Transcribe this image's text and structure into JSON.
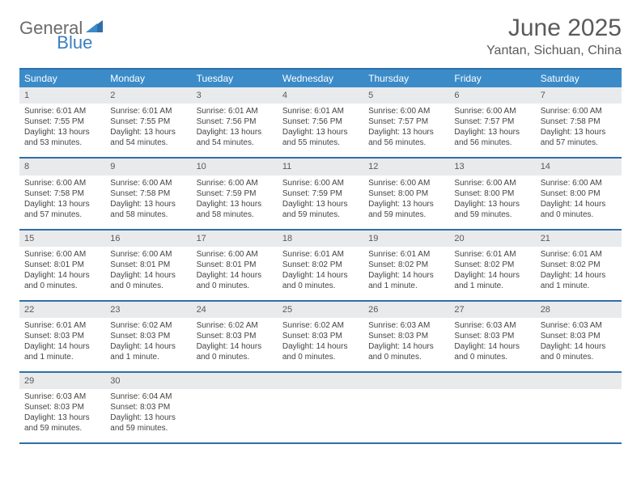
{
  "brand": {
    "word1": "General",
    "word2": "Blue"
  },
  "title": "June 2025",
  "location": "Yantan, Sichuan, China",
  "colors": {
    "header_blue": "#3b8bc9",
    "rule_blue": "#2f6fa8",
    "daynum_bg": "#e9eaec",
    "text_gray": "#5a5a5a"
  },
  "weekdays": [
    "Sunday",
    "Monday",
    "Tuesday",
    "Wednesday",
    "Thursday",
    "Friday",
    "Saturday"
  ],
  "weeks": [
    [
      {
        "n": "1",
        "sunrise": "Sunrise: 6:01 AM",
        "sunset": "Sunset: 7:55 PM",
        "day1": "Daylight: 13 hours",
        "day2": "and 53 minutes."
      },
      {
        "n": "2",
        "sunrise": "Sunrise: 6:01 AM",
        "sunset": "Sunset: 7:55 PM",
        "day1": "Daylight: 13 hours",
        "day2": "and 54 minutes."
      },
      {
        "n": "3",
        "sunrise": "Sunrise: 6:01 AM",
        "sunset": "Sunset: 7:56 PM",
        "day1": "Daylight: 13 hours",
        "day2": "and 54 minutes."
      },
      {
        "n": "4",
        "sunrise": "Sunrise: 6:01 AM",
        "sunset": "Sunset: 7:56 PM",
        "day1": "Daylight: 13 hours",
        "day2": "and 55 minutes."
      },
      {
        "n": "5",
        "sunrise": "Sunrise: 6:00 AM",
        "sunset": "Sunset: 7:57 PM",
        "day1": "Daylight: 13 hours",
        "day2": "and 56 minutes."
      },
      {
        "n": "6",
        "sunrise": "Sunrise: 6:00 AM",
        "sunset": "Sunset: 7:57 PM",
        "day1": "Daylight: 13 hours",
        "day2": "and 56 minutes."
      },
      {
        "n": "7",
        "sunrise": "Sunrise: 6:00 AM",
        "sunset": "Sunset: 7:58 PM",
        "day1": "Daylight: 13 hours",
        "day2": "and 57 minutes."
      }
    ],
    [
      {
        "n": "8",
        "sunrise": "Sunrise: 6:00 AM",
        "sunset": "Sunset: 7:58 PM",
        "day1": "Daylight: 13 hours",
        "day2": "and 57 minutes."
      },
      {
        "n": "9",
        "sunrise": "Sunrise: 6:00 AM",
        "sunset": "Sunset: 7:58 PM",
        "day1": "Daylight: 13 hours",
        "day2": "and 58 minutes."
      },
      {
        "n": "10",
        "sunrise": "Sunrise: 6:00 AM",
        "sunset": "Sunset: 7:59 PM",
        "day1": "Daylight: 13 hours",
        "day2": "and 58 minutes."
      },
      {
        "n": "11",
        "sunrise": "Sunrise: 6:00 AM",
        "sunset": "Sunset: 7:59 PM",
        "day1": "Daylight: 13 hours",
        "day2": "and 59 minutes."
      },
      {
        "n": "12",
        "sunrise": "Sunrise: 6:00 AM",
        "sunset": "Sunset: 8:00 PM",
        "day1": "Daylight: 13 hours",
        "day2": "and 59 minutes."
      },
      {
        "n": "13",
        "sunrise": "Sunrise: 6:00 AM",
        "sunset": "Sunset: 8:00 PM",
        "day1": "Daylight: 13 hours",
        "day2": "and 59 minutes."
      },
      {
        "n": "14",
        "sunrise": "Sunrise: 6:00 AM",
        "sunset": "Sunset: 8:00 PM",
        "day1": "Daylight: 14 hours",
        "day2": "and 0 minutes."
      }
    ],
    [
      {
        "n": "15",
        "sunrise": "Sunrise: 6:00 AM",
        "sunset": "Sunset: 8:01 PM",
        "day1": "Daylight: 14 hours",
        "day2": "and 0 minutes."
      },
      {
        "n": "16",
        "sunrise": "Sunrise: 6:00 AM",
        "sunset": "Sunset: 8:01 PM",
        "day1": "Daylight: 14 hours",
        "day2": "and 0 minutes."
      },
      {
        "n": "17",
        "sunrise": "Sunrise: 6:00 AM",
        "sunset": "Sunset: 8:01 PM",
        "day1": "Daylight: 14 hours",
        "day2": "and 0 minutes."
      },
      {
        "n": "18",
        "sunrise": "Sunrise: 6:01 AM",
        "sunset": "Sunset: 8:02 PM",
        "day1": "Daylight: 14 hours",
        "day2": "and 0 minutes."
      },
      {
        "n": "19",
        "sunrise": "Sunrise: 6:01 AM",
        "sunset": "Sunset: 8:02 PM",
        "day1": "Daylight: 14 hours",
        "day2": "and 1 minute."
      },
      {
        "n": "20",
        "sunrise": "Sunrise: 6:01 AM",
        "sunset": "Sunset: 8:02 PM",
        "day1": "Daylight: 14 hours",
        "day2": "and 1 minute."
      },
      {
        "n": "21",
        "sunrise": "Sunrise: 6:01 AM",
        "sunset": "Sunset: 8:02 PM",
        "day1": "Daylight: 14 hours",
        "day2": "and 1 minute."
      }
    ],
    [
      {
        "n": "22",
        "sunrise": "Sunrise: 6:01 AM",
        "sunset": "Sunset: 8:03 PM",
        "day1": "Daylight: 14 hours",
        "day2": "and 1 minute."
      },
      {
        "n": "23",
        "sunrise": "Sunrise: 6:02 AM",
        "sunset": "Sunset: 8:03 PM",
        "day1": "Daylight: 14 hours",
        "day2": "and 1 minute."
      },
      {
        "n": "24",
        "sunrise": "Sunrise: 6:02 AM",
        "sunset": "Sunset: 8:03 PM",
        "day1": "Daylight: 14 hours",
        "day2": "and 0 minutes."
      },
      {
        "n": "25",
        "sunrise": "Sunrise: 6:02 AM",
        "sunset": "Sunset: 8:03 PM",
        "day1": "Daylight: 14 hours",
        "day2": "and 0 minutes."
      },
      {
        "n": "26",
        "sunrise": "Sunrise: 6:03 AM",
        "sunset": "Sunset: 8:03 PM",
        "day1": "Daylight: 14 hours",
        "day2": "and 0 minutes."
      },
      {
        "n": "27",
        "sunrise": "Sunrise: 6:03 AM",
        "sunset": "Sunset: 8:03 PM",
        "day1": "Daylight: 14 hours",
        "day2": "and 0 minutes."
      },
      {
        "n": "28",
        "sunrise": "Sunrise: 6:03 AM",
        "sunset": "Sunset: 8:03 PM",
        "day1": "Daylight: 14 hours",
        "day2": "and 0 minutes."
      }
    ],
    [
      {
        "n": "29",
        "sunrise": "Sunrise: 6:03 AM",
        "sunset": "Sunset: 8:03 PM",
        "day1": "Daylight: 13 hours",
        "day2": "and 59 minutes."
      },
      {
        "n": "30",
        "sunrise": "Sunrise: 6:04 AM",
        "sunset": "Sunset: 8:03 PM",
        "day1": "Daylight: 13 hours",
        "day2": "and 59 minutes."
      },
      {
        "empty": true
      },
      {
        "empty": true
      },
      {
        "empty": true
      },
      {
        "empty": true
      },
      {
        "empty": true
      }
    ]
  ]
}
